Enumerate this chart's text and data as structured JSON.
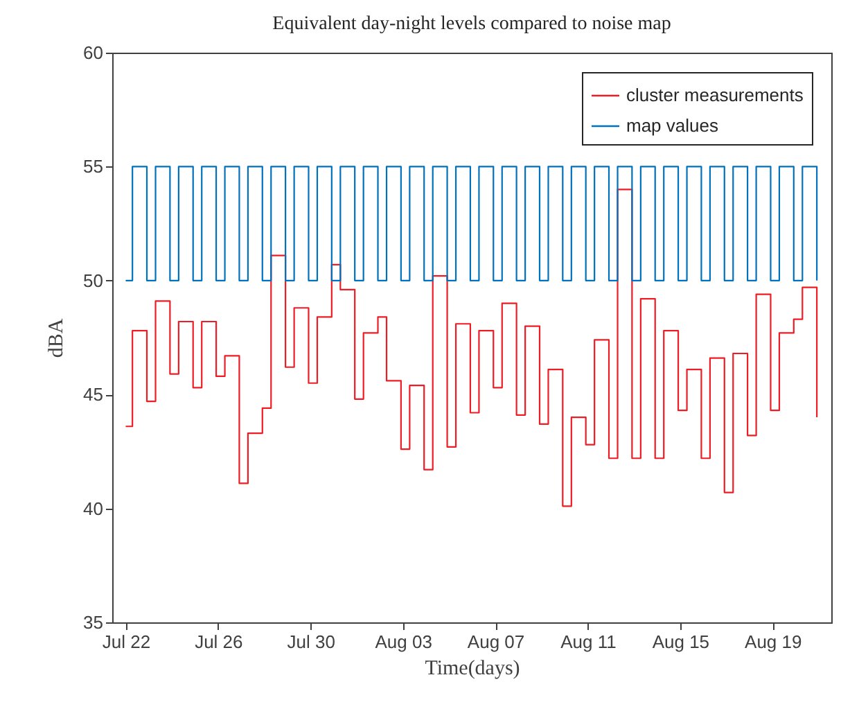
{
  "chart_data": {
    "type": "step",
    "title": "Equivalent day-night levels compared to noise map",
    "xlabel": "Time(days)",
    "ylabel": "dBA",
    "x": [
      "--07-22T00:00",
      "--07-22T07:00",
      "--07-22T22:00",
      "--07-23T07:00",
      "--07-23T22:00",
      "--07-24T07:00",
      "--07-24T22:00",
      "--07-25T07:00",
      "--07-25T22:00",
      "--07-26T07:00",
      "--07-26T22:00",
      "--07-27T07:00",
      "--07-27T22:00",
      "--07-28T07:00",
      "--07-28T22:00",
      "--07-29T07:00",
      "--07-29T22:00",
      "--07-30T07:00",
      "--07-30T22:00",
      "--07-31T07:00",
      "--07-31T22:00",
      "--08-01T07:00",
      "--08-01T22:00",
      "--08-02T07:00",
      "--08-02T22:00",
      "--08-03T07:00",
      "--08-03T22:00",
      "--08-04T07:00",
      "--08-04T22:00",
      "--08-05T07:00",
      "--08-05T22:00",
      "--08-06T07:00",
      "--08-06T22:00",
      "--08-07T07:00",
      "--08-07T22:00",
      "--08-08T07:00",
      "--08-08T22:00",
      "--08-09T07:00",
      "--08-09T22:00",
      "--08-10T07:00",
      "--08-10T22:00",
      "--08-11T07:00",
      "--08-11T22:00",
      "--08-12T07:00",
      "--08-12T22:00",
      "--08-13T07:00",
      "--08-13T22:00",
      "--08-14T07:00",
      "--08-14T22:00",
      "--08-15T07:00",
      "--08-15T22:00",
      "--08-16T07:00",
      "--08-16T22:00",
      "--08-17T07:00",
      "--08-17T22:00",
      "--08-18T07:00",
      "--08-18T22:00",
      "--08-19T07:00",
      "--08-19T22:00",
      "--08-20T07:00",
      "--08-20T22:00"
    ],
    "series": [
      {
        "name": "cluster measurements",
        "color": "#ee1c25",
        "values": [
          43.6,
          47.8,
          44.7,
          49.1,
          45.9,
          48.2,
          45.3,
          48.2,
          45.8,
          46.7,
          41.1,
          43.3,
          44.4,
          51.1,
          46.2,
          48.8,
          45.5,
          48.4,
          50.7,
          49.6,
          44.8,
          47.7,
          48.4,
          45.6,
          42.6,
          45.4,
          41.7,
          50.2,
          42.7,
          48.1,
          44.2,
          47.8,
          45.3,
          49.0,
          44.1,
          48.0,
          43.7,
          46.1,
          40.1,
          44.0,
          42.8,
          47.4,
          42.2,
          54.0,
          42.2,
          49.2,
          42.2,
          47.8,
          44.3,
          46.1,
          42.2,
          46.6,
          40.7,
          46.8,
          43.2,
          49.4,
          44.3,
          47.7,
          48.3,
          49.7,
          44.0
        ]
      },
      {
        "name": "map values",
        "color": "#0072bd",
        "values": [
          50,
          55,
          50,
          55,
          50,
          55,
          50,
          55,
          50,
          55,
          50,
          55,
          50,
          55,
          50,
          55,
          50,
          55,
          50,
          55,
          50,
          55,
          50,
          55,
          50,
          55,
          50,
          55,
          50,
          55,
          50,
          55,
          50,
          55,
          50,
          55,
          50,
          55,
          50,
          55,
          50,
          55,
          50,
          55,
          50,
          55,
          50,
          55,
          50,
          55,
          50,
          55,
          50,
          55,
          50,
          55,
          50,
          55,
          50,
          55,
          50
        ]
      }
    ],
    "xlim": [
      "--07-21T10:00",
      "--08-21T13:00"
    ],
    "xticks": [
      {
        "value": "--07-22",
        "label": "Jul 22"
      },
      {
        "value": "--07-26",
        "label": "Jul 26"
      },
      {
        "value": "--07-30",
        "label": "Jul 30"
      },
      {
        "value": "--08-03",
        "label": "Aug 03"
      },
      {
        "value": "--08-07",
        "label": "Aug 07"
      },
      {
        "value": "--08-11",
        "label": "Aug 11"
      },
      {
        "value": "--08-15",
        "label": "Aug 15"
      },
      {
        "value": "--08-19",
        "label": "Aug 19"
      }
    ],
    "ylim": [
      35,
      60
    ],
    "yticks": [
      35,
      40,
      45,
      50,
      55,
      60
    ],
    "legend": "top right",
    "line_style": "solid"
  }
}
